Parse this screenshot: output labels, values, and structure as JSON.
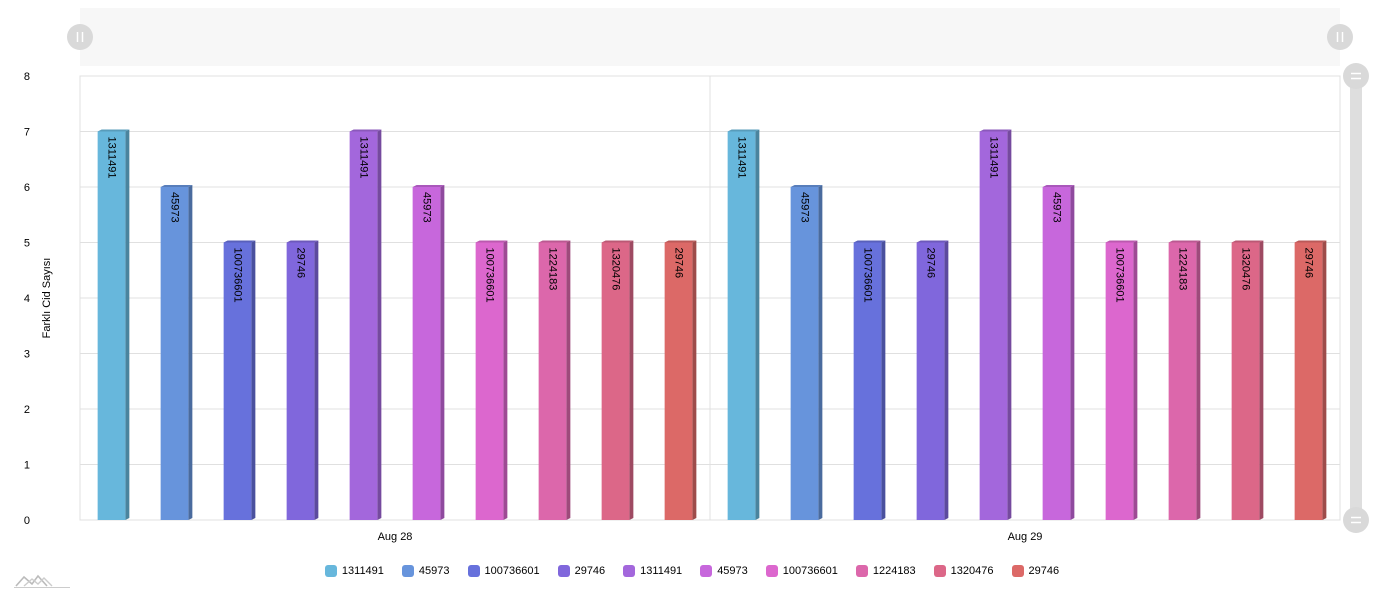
{
  "chart_data": {
    "type": "bar",
    "categories": [
      "Aug 28",
      "Aug 29"
    ],
    "ylabel": "Farklı Cid Sayısı",
    "ylim": [
      0,
      8
    ],
    "yticks": [
      0,
      1,
      2,
      3,
      4,
      5,
      6,
      7,
      8
    ],
    "grid": true,
    "legend_position": "bottom",
    "series": [
      {
        "name": "1311491",
        "values": [
          7,
          7
        ],
        "color": "#67b7dc"
      },
      {
        "name": "45973",
        "values": [
          6,
          6
        ],
        "color": "#6794dc"
      },
      {
        "name": "100736601",
        "values": [
          5,
          5
        ],
        "color": "#6771dc"
      },
      {
        "name": "29746",
        "values": [
          5,
          5
        ],
        "color": "#8067dc"
      },
      {
        "name": "1311491",
        "values": [
          7,
          7
        ],
        "color": "#a367dc"
      },
      {
        "name": "45973",
        "values": [
          6,
          6
        ],
        "color": "#c767dc"
      },
      {
        "name": "100736601",
        "values": [
          5,
          5
        ],
        "color": "#dc67ce"
      },
      {
        "name": "1224183",
        "values": [
          5,
          5
        ],
        "color": "#dc67ab"
      },
      {
        "name": "1320476",
        "values": [
          5,
          5
        ],
        "color": "#dc6788"
      },
      {
        "name": "29746",
        "values": [
          5,
          5
        ],
        "color": "#dc6967"
      }
    ]
  },
  "colors": {
    "grid": "#e0e0e0",
    "scrollbar_bg": "#f5f5f5",
    "grip": "#d9d9d9",
    "grip_icon": "#ffffff"
  },
  "icons": {
    "scrollbar_grip_left": "grip-icon",
    "scrollbar_grip_right": "grip-icon",
    "scrollbar_grip_top": "grip-icon",
    "scrollbar_grip_bottom": "grip-icon",
    "logo": "amcharts-logo-icon"
  }
}
